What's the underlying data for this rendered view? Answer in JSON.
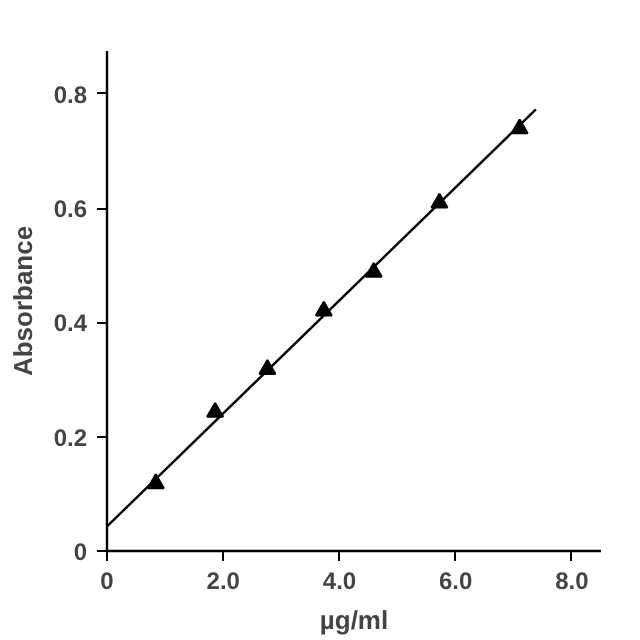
{
  "chart_data": {
    "type": "scatter",
    "xlabel": "µg/ml",
    "ylabel": "Absorbance",
    "xlim": [
      0,
      8.5
    ],
    "ylim": [
      0,
      0.875
    ],
    "xticks": [
      0,
      {
        "value": 2,
        "label": "2.0"
      },
      {
        "value": 4,
        "label": "4.0"
      },
      {
        "value": 6,
        "label": "6.0"
      },
      {
        "value": 8,
        "label": "8.0"
      }
    ],
    "yticks": [
      0,
      0.2,
      0.4,
      0.6,
      0.8
    ],
    "grid": false,
    "marker": "triangle",
    "series": [
      {
        "color": "#000000",
        "x": [
          0.84,
          1.86,
          2.76,
          3.73,
          4.59,
          5.72,
          7.1
        ],
        "values": [
          0.118,
          0.243,
          0.318,
          0.42,
          0.488,
          0.609,
          0.739
        ]
      },
      {
        "type": "line",
        "color": "#000000",
        "x": [
          0,
          7.38
        ],
        "values": [
          0.043,
          0.773
        ],
        "line_style": "solid",
        "marker": "none"
      }
    ]
  }
}
